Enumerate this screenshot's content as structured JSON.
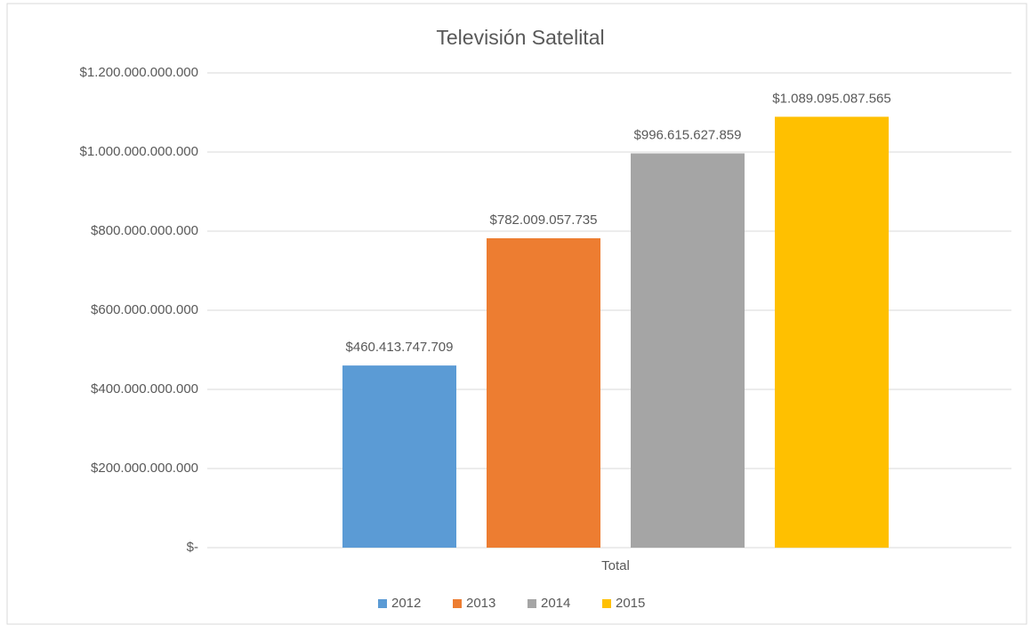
{
  "chart_data": {
    "type": "bar",
    "title": "Televisión Satelital",
    "categories": [
      "Total"
    ],
    "series": [
      {
        "name": "2012",
        "color": "#5b9bd5",
        "values": [
          460413747709
        ],
        "value_labels": [
          "$460.413.747.709"
        ]
      },
      {
        "name": "2013",
        "color": "#ed7d31",
        "values": [
          782009057735
        ],
        "value_labels": [
          "$782.009.057.735"
        ]
      },
      {
        "name": "2014",
        "color": "#a5a5a5",
        "values": [
          996615627859
        ],
        "value_labels": [
          "$996.615.627.859"
        ]
      },
      {
        "name": "2015",
        "color": "#ffc000",
        "values": [
          1089095087565
        ],
        "value_labels": [
          "$1.089.095.087.565"
        ]
      }
    ],
    "ylim": [
      0,
      1200000000000
    ],
    "yticks": [
      {
        "value": 0,
        "label": "$-"
      },
      {
        "value": 200000000000,
        "label": "$200.000.000.000"
      },
      {
        "value": 400000000000,
        "label": "$400.000.000.000"
      },
      {
        "value": 600000000000,
        "label": "$600.000.000.000"
      },
      {
        "value": 800000000000,
        "label": "$800.000.000.000"
      },
      {
        "value": 1000000000000,
        "label": "$1.000.000.000.000"
      },
      {
        "value": 1200000000000,
        "label": "$1.200.000.000.000"
      }
    ],
    "grid": true,
    "legend": "bottom"
  }
}
